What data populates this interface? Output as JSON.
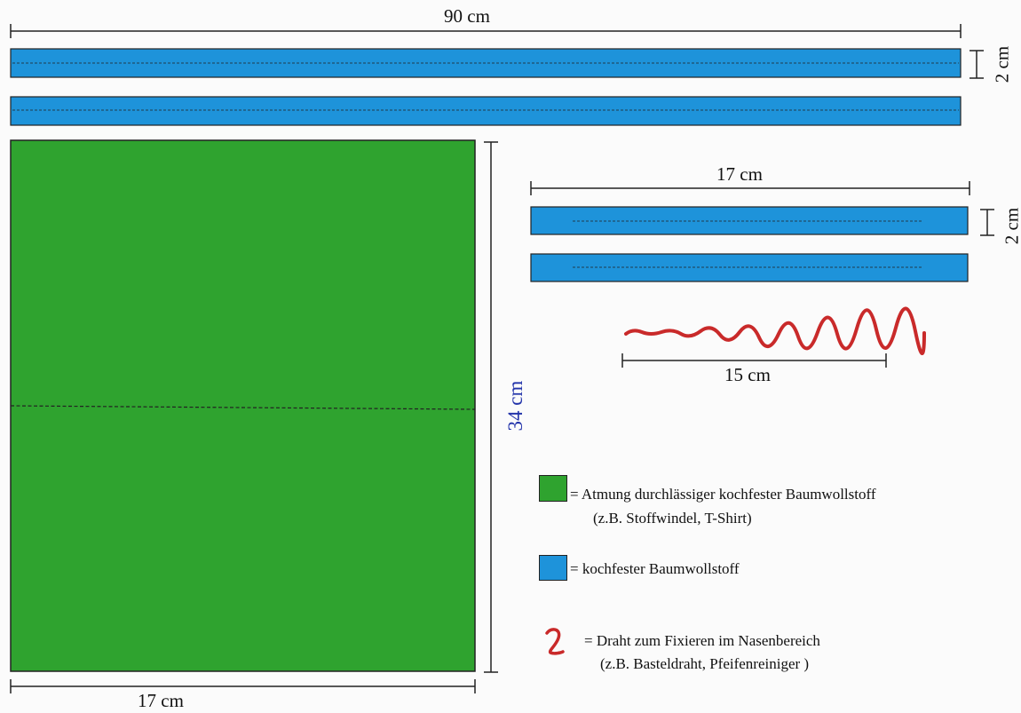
{
  "colors": {
    "green": "#2fa32f",
    "blue": "#1e93da",
    "red": "#c92a2a",
    "blue_text": "#2233aa",
    "line": "#222222"
  },
  "dimensions": {
    "long_strip_length": "90 cm",
    "long_strip_width": "2 cm",
    "panel_height": "34 cm",
    "panel_width": "17 cm",
    "short_strip_length": "17 cm",
    "short_strip_width": "2 cm",
    "wire_length": "15 cm"
  },
  "legend": [
    {
      "icon": "green-square",
      "text": "= Atmung durchlässiger kochfester Baumwollstoff",
      "note": "(z.B. Stoffwindel, T-Shirt)"
    },
    {
      "icon": "blue-square",
      "text": "= kochfester Baumwollstoff",
      "note": ""
    },
    {
      "icon": "wire-squiggle",
      "text": "= Draht zum Fixieren im Nasenbereich",
      "note": "(z.B. Basteldraht, Pfeifenreiniger )"
    }
  ]
}
